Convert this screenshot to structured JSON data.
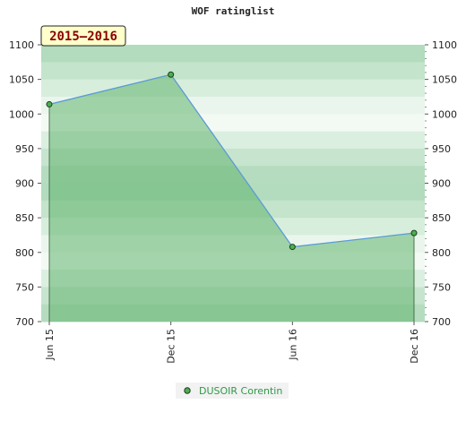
{
  "chart_data": {
    "type": "area",
    "title": "WOF ratinglist",
    "period_label": "2015–2016",
    "x": [
      "Jun 15",
      "Dec 15",
      "Jun 16",
      "Dec 16"
    ],
    "series": [
      {
        "name": "DUSOIR Corentin",
        "values": [
          1014,
          1057,
          808,
          828
        ]
      }
    ],
    "ylim": [
      700,
      1100
    ],
    "yticks": [
      "700",
      "750",
      "800",
      "850",
      "900",
      "950",
      "1000",
      "1050",
      "1100"
    ],
    "grid": true,
    "legend_position": "bottom-center",
    "colors": {
      "fill": "#63b46f",
      "line": "#5b9bd5",
      "marker": "#4caf50",
      "legend_text": "#2e9a48",
      "badge_bg": "#ffffcc",
      "badge_text": "#8b0000"
    }
  }
}
